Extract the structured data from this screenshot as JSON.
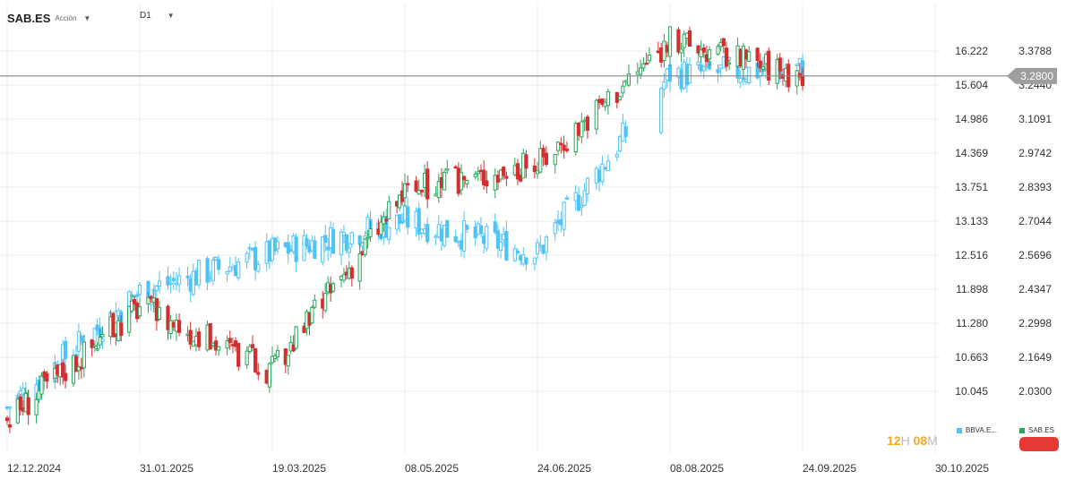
{
  "header": {
    "symbol": "SAB.ES",
    "instrument_type": "Acción",
    "timeframe": "D1",
    "dropdown_glyph": "▼"
  },
  "current_price": {
    "label": "3.2800",
    "value": 3.28
  },
  "countdown": {
    "hours": "12",
    "hours_unit": "H",
    "minutes": "08",
    "minutes_unit": "M"
  },
  "legend": [
    {
      "label": "BBVA.E...",
      "color": "#4fc3f7"
    },
    {
      "label": "SAB.ES",
      "color": "#26a65b"
    }
  ],
  "colors": {
    "up": "#26a65b",
    "down": "#d32f2f",
    "compare": "#4fc3f7",
    "grid": "#eeeeee",
    "price_line": "#888888",
    "price_tag": "#9e9e9e",
    "countdown": "#f5a623",
    "pill": "#e53935"
  },
  "chart_data": {
    "type": "candlestick",
    "title": "",
    "x_tick_labels": [
      "12.12.2024",
      "31.01.2025",
      "19.03.2025",
      "08.05.2025",
      "24.06.2025",
      "08.08.2025",
      "24.09.2025",
      "30.10.2025"
    ],
    "left_axis_ticks": [
      "16.222",
      "15.604",
      "14.986",
      "14.369",
      "13.751",
      "13.133",
      "12.516",
      "11.898",
      "11.280",
      "10.663",
      "10.045"
    ],
    "right_axis_ticks": [
      "3.3788",
      "3.2440",
      "3.1091",
      "2.9742",
      "2.8393",
      "2.7044",
      "2.5696",
      "2.4347",
      "2.2998",
      "2.1649",
      "2.0300"
    ],
    "left_axis_range": [
      9.63,
      16.65
    ],
    "right_axis_range": [
      1.939,
      3.469
    ],
    "grid": true,
    "legend_position": "bottom-right",
    "series": [
      {
        "name": "SAB.ES",
        "axis": "right",
        "style": "candlestick",
        "x": [
          "2024-12-12",
          "2025-01-31",
          "2025-03-19",
          "2025-05-08",
          "2025-06-24",
          "2025-08-08",
          "2025-09-24"
        ],
        "close": [
          1.92,
          2.37,
          2.11,
          2.82,
          2.93,
          3.42,
          3.28
        ]
      },
      {
        "name": "BBVA.E...",
        "axis": "left",
        "style": "candlestick",
        "x": [
          "2024-12-12",
          "2025-01-31",
          "2025-03-19",
          "2025-05-08",
          "2025-06-24",
          "2025-08-08",
          "2025-09-24"
        ],
        "close": [
          9.75,
          11.85,
          12.55,
          13.15,
          12.55,
          15.8,
          15.9
        ]
      }
    ]
  }
}
